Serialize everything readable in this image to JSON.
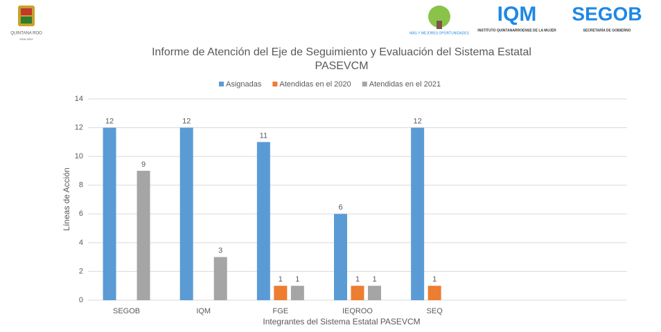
{
  "header": {
    "left_logo": {
      "name": "QUINTANA ROO",
      "years": "2016-2022"
    },
    "right_logos": {
      "slogan": "MÁS Y MEJORES OPORTUNIDADES",
      "iqm": "IQM",
      "iqm_name": "INSTITUTO QUINTANARROENSE DE LA MUJER",
      "segob": "SEGOB",
      "segob_name": "SECRETARÍA DE GOBIERNO"
    }
  },
  "chart_data": {
    "type": "bar",
    "title": "Informe de Atención del Eje de Seguimiento y Evaluación del Sistema Estatal PASEVCM",
    "x_label": "Integrantes del Sistema Estatal PASEVCM",
    "y_label": "Líneas de Acción",
    "categories": [
      "SEGOB",
      "IQM",
      "FGE",
      "IEQROO",
      "SEQ",
      null,
      null
    ],
    "series": [
      {
        "name": "Asignadas",
        "color": "#5b9bd5",
        "values": [
          12,
          12,
          11,
          6,
          12,
          null,
          null
        ]
      },
      {
        "name": "Atendidas en el 2020",
        "color": "#ed7d31",
        "values": [
          null,
          null,
          1,
          1,
          1,
          null,
          null
        ]
      },
      {
        "name": "Atendidas en el 2021",
        "color": "#a5a5a5",
        "values": [
          9,
          3,
          1,
          1,
          null,
          null,
          null
        ]
      }
    ],
    "ylim": [
      0,
      14
    ],
    "yticks": [
      0,
      2,
      4,
      6,
      8,
      10,
      12,
      14
    ],
    "grid": true,
    "legend": "top"
  }
}
